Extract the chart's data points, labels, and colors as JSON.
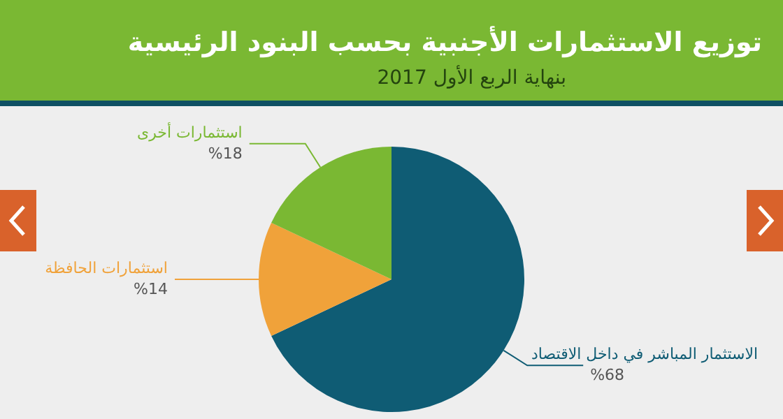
{
  "chart_data": {
    "type": "pie",
    "title": "توزيع الاستثمارات الأجنبية بحسب البنود الرئيسية",
    "subtitle": "بنهاية الربع الأول 2017",
    "categories": [
      "الاستثمار المباشر في داخل الاقتصاد",
      "استثمارات الحافظة",
      "استثمارات أخرى"
    ],
    "values": [
      68,
      14,
      18
    ],
    "value_labels": [
      "%68",
      "%14",
      "%18"
    ],
    "colors": [
      "#0f5c74",
      "#f0a23a",
      "#7ab833"
    ],
    "legend": false
  }
}
